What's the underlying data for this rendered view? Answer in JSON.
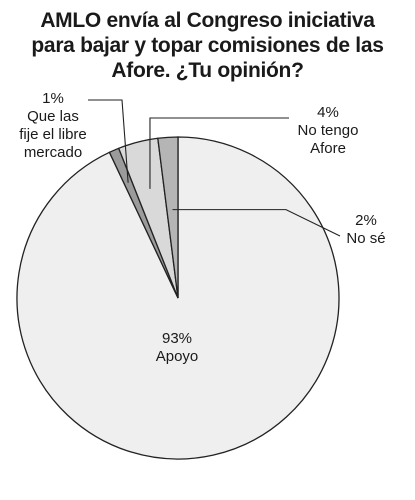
{
  "chart_data": {
    "type": "pie",
    "title_lines": [
      "AMLO envía al Congreso iniciativa",
      "para bajar y topar comisiones de las",
      "Afore. ¿Tu opinión?"
    ],
    "slices": [
      {
        "key": "apoyo",
        "pct_label": "93%",
        "label_lines": [
          "Apoyo"
        ],
        "value": 93,
        "color": "#efefef"
      },
      {
        "key": "libre",
        "pct_label": "1%",
        "label_lines": [
          "Que las",
          "fije el libre",
          "mercado"
        ],
        "value": 1,
        "color": "#9b9b9b"
      },
      {
        "key": "no_tengo",
        "pct_label": "4%",
        "label_lines": [
          "No tengo",
          "Afore"
        ],
        "value": 4,
        "color": "#d9d9d9"
      },
      {
        "key": "no_se",
        "pct_label": "2%",
        "label_lines": [
          "No sé"
        ],
        "value": 2,
        "color": "#b5b5b5"
      }
    ]
  }
}
